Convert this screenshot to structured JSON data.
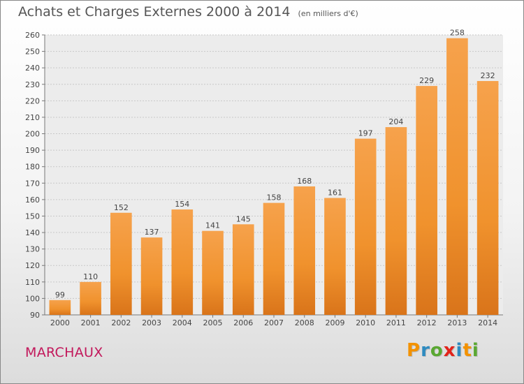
{
  "chart_data": {
    "type": "bar",
    "title": "Achats et Charges Externes 2000 à 2014",
    "subtitle": "(en milliers d'€)",
    "categories": [
      "2000",
      "2001",
      "2002",
      "2003",
      "2004",
      "2005",
      "2006",
      "2007",
      "2008",
      "2009",
      "2010",
      "2011",
      "2012",
      "2013",
      "2014"
    ],
    "values": [
      99,
      110,
      152,
      137,
      154,
      141,
      145,
      158,
      168,
      161,
      197,
      204,
      229,
      258,
      232
    ],
    "ylim": [
      90,
      260
    ],
    "yticks": [
      90,
      100,
      110,
      120,
      130,
      140,
      150,
      160,
      170,
      180,
      190,
      200,
      210,
      220,
      230,
      240,
      250,
      260
    ],
    "grid": true,
    "bar_color": "#f0922d",
    "bar_color_dark": "#d9741a"
  },
  "commune": "MARCHAUX",
  "brand": {
    "letters": [
      "P",
      "r",
      "o",
      "x",
      "i",
      "t",
      "i"
    ],
    "colors": [
      "#f39200",
      "#2e8bc0",
      "#5aa832",
      "#e2231a",
      "#2e8bc0",
      "#f39200",
      "#5aa832"
    ]
  }
}
